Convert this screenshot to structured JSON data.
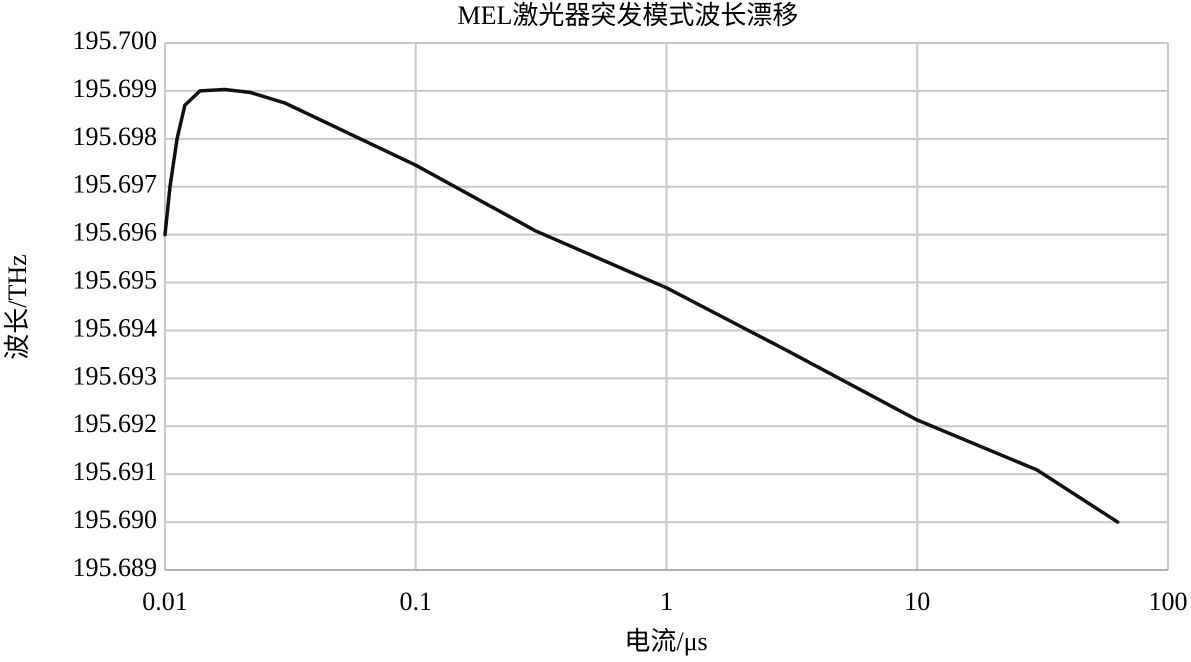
{
  "chart_data": {
    "type": "line",
    "title": "MEL激光器突发模式波长漂移",
    "x_label": "电流/μs",
    "y_label": "波长/THz",
    "xscale": "log",
    "grid": true,
    "xlim": [
      0.01,
      100
    ],
    "xticks": [
      0.01,
      0.1,
      1,
      10,
      100
    ],
    "ylim": [
      195.689,
      195.7
    ],
    "yticks": [
      {
        "value": 195.689,
        "label": "195.689"
      },
      {
        "value": 195.69,
        "label": "195.690"
      },
      195.691,
      195.692,
      195.693,
      195.694,
      195.695,
      195.696,
      195.697,
      195.698,
      195.699,
      {
        "value": 195.7,
        "label": "195.700"
      }
    ],
    "x": [
      0.01,
      0.01047,
      0.01117,
      0.012,
      0.0138,
      0.0173,
      0.0218,
      0.03,
      0.1,
      0.3,
      1,
      3,
      10,
      30,
      63
    ],
    "series": [
      {
        "name": "波长",
        "color": "#111111",
        "values": [
          195.696,
          195.697,
          195.698,
          195.6987,
          195.699,
          195.69903,
          195.69897,
          195.69875,
          195.69745,
          195.69608,
          195.69489,
          195.69359,
          195.69213,
          195.69109,
          195.69
        ]
      }
    ]
  }
}
